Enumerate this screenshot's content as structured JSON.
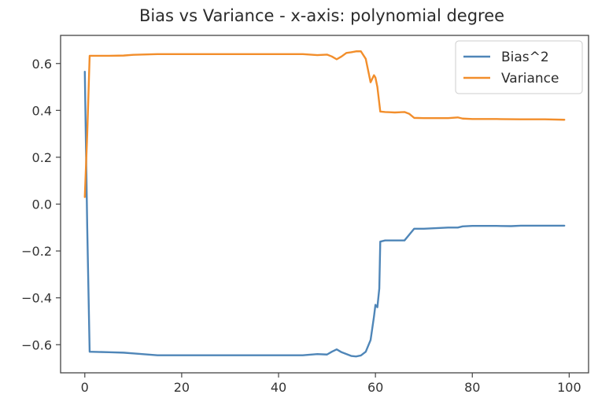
{
  "chart_data": {
    "type": "line",
    "title": "Bias vs Variance - x-axis: polynomial degree",
    "xlabel": "",
    "ylabel": "",
    "xlim": [
      -5,
      104
    ],
    "ylim": [
      -0.72,
      0.72
    ],
    "xticks": [
      0,
      20,
      40,
      60,
      80,
      100
    ],
    "xtick_labels": [
      "0",
      "20",
      "40",
      "60",
      "80",
      "100"
    ],
    "yticks": [
      0.6,
      0.4,
      0.2,
      0.0,
      -0.2,
      -0.4,
      -0.6
    ],
    "ytick_labels": [
      "0.6",
      "0.4",
      "0.2",
      "0.0",
      "−0.2",
      "−0.4",
      "−0.6"
    ],
    "grid": false,
    "legend_position": "top-right",
    "series": [
      {
        "name": "Bias^2",
        "color": "#4f86b8",
        "points": [
          [
            0,
            0.565
          ],
          [
            0.5,
            -0.1
          ],
          [
            1,
            -0.63
          ],
          [
            5,
            -0.632
          ],
          [
            8,
            -0.634
          ],
          [
            10,
            -0.637
          ],
          [
            15,
            -0.645
          ],
          [
            20,
            -0.645
          ],
          [
            30,
            -0.645
          ],
          [
            40,
            -0.645
          ],
          [
            45,
            -0.645
          ],
          [
            48,
            -0.64
          ],
          [
            50,
            -0.642
          ],
          [
            51,
            -0.63
          ],
          [
            52,
            -0.62
          ],
          [
            53,
            -0.632
          ],
          [
            54,
            -0.64
          ],
          [
            55,
            -0.648
          ],
          [
            56,
            -0.65
          ],
          [
            57,
            -0.646
          ],
          [
            58,
            -0.63
          ],
          [
            59,
            -0.58
          ],
          [
            59.7,
            -0.48
          ],
          [
            60,
            -0.43
          ],
          [
            60.4,
            -0.44
          ],
          [
            60.8,
            -0.36
          ],
          [
            61,
            -0.16
          ],
          [
            62,
            -0.155
          ],
          [
            63,
            -0.155
          ],
          [
            64,
            -0.155
          ],
          [
            65,
            -0.155
          ],
          [
            66,
            -0.155
          ],
          [
            67,
            -0.13
          ],
          [
            68,
            -0.105
          ],
          [
            70,
            -0.105
          ],
          [
            75,
            -0.1
          ],
          [
            77,
            -0.1
          ],
          [
            78,
            -0.095
          ],
          [
            80,
            -0.093
          ],
          [
            85,
            -0.093
          ],
          [
            88,
            -0.094
          ],
          [
            90,
            -0.092
          ],
          [
            95,
            -0.092
          ],
          [
            99,
            -0.092
          ]
        ]
      },
      {
        "name": "Variance",
        "color": "#f28e2b",
        "points": [
          [
            0,
            0.03
          ],
          [
            0.5,
            0.3
          ],
          [
            1,
            0.633
          ],
          [
            5,
            0.633
          ],
          [
            8,
            0.634
          ],
          [
            10,
            0.637
          ],
          [
            15,
            0.64
          ],
          [
            20,
            0.64
          ],
          [
            30,
            0.64
          ],
          [
            40,
            0.64
          ],
          [
            45,
            0.64
          ],
          [
            48,
            0.636
          ],
          [
            50,
            0.638
          ],
          [
            51,
            0.63
          ],
          [
            52,
            0.618
          ],
          [
            53,
            0.63
          ],
          [
            54,
            0.645
          ],
          [
            55,
            0.648
          ],
          [
            56,
            0.652
          ],
          [
            57,
            0.652
          ],
          [
            58,
            0.62
          ],
          [
            59,
            0.52
          ],
          [
            59.7,
            0.55
          ],
          [
            60,
            0.54
          ],
          [
            60.4,
            0.5
          ],
          [
            60.8,
            0.43
          ],
          [
            61,
            0.395
          ],
          [
            62,
            0.393
          ],
          [
            63,
            0.392
          ],
          [
            64,
            0.391
          ],
          [
            66,
            0.393
          ],
          [
            67,
            0.385
          ],
          [
            68,
            0.368
          ],
          [
            70,
            0.367
          ],
          [
            75,
            0.367
          ],
          [
            77,
            0.37
          ],
          [
            78,
            0.365
          ],
          [
            80,
            0.363
          ],
          [
            85,
            0.363
          ],
          [
            90,
            0.362
          ],
          [
            95,
            0.362
          ],
          [
            99,
            0.36
          ]
        ]
      }
    ]
  }
}
